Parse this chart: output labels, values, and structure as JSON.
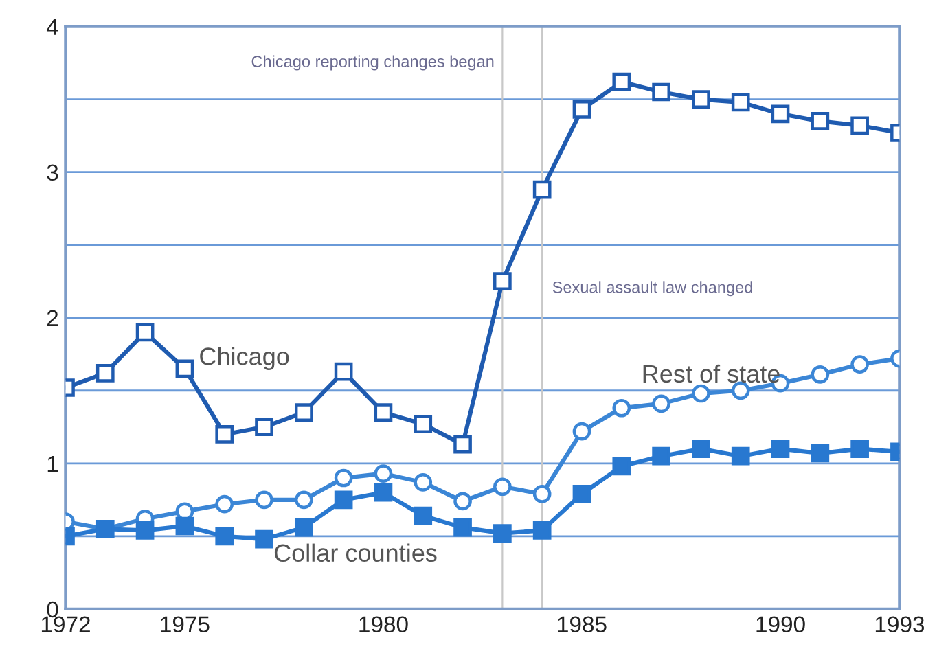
{
  "chart_data": {
    "type": "line",
    "x": [
      1972,
      1973,
      1974,
      1975,
      1976,
      1977,
      1978,
      1979,
      1980,
      1981,
      1982,
      1983,
      1984,
      1985,
      1986,
      1987,
      1988,
      1989,
      1990,
      1991,
      1992,
      1993
    ],
    "series": [
      {
        "name": "Chicago",
        "color": "#1f5bb0",
        "marker": "square",
        "values": [
          1.52,
          1.62,
          1.9,
          1.65,
          1.2,
          1.25,
          1.35,
          1.63,
          1.35,
          1.27,
          1.13,
          2.25,
          2.88,
          3.43,
          3.62,
          3.55,
          3.5,
          3.48,
          3.4,
          3.35,
          3.32,
          3.27
        ]
      },
      {
        "name": "Rest of state",
        "color": "#3b86d6",
        "marker": "circle",
        "values": [
          0.6,
          0.55,
          0.62,
          0.67,
          0.72,
          0.75,
          0.75,
          0.9,
          0.93,
          0.87,
          0.74,
          0.84,
          0.79,
          1.22,
          1.38,
          1.41,
          1.48,
          1.5,
          1.55,
          1.61,
          1.68,
          1.72
        ]
      },
      {
        "name": "Collar counties",
        "color": "#2878d0",
        "marker": "square",
        "values": [
          0.5,
          0.55,
          0.54,
          0.57,
          0.5,
          0.48,
          0.56,
          0.75,
          0.8,
          0.64,
          0.56,
          0.52,
          0.54,
          0.79,
          0.98,
          1.05,
          1.1,
          1.05,
          1.1,
          1.07,
          1.1,
          1.08
        ]
      }
    ],
    "xlim": [
      1972,
      1993
    ],
    "xticks": [
      1972,
      1975,
      1980,
      1985,
      1990,
      1993
    ],
    "ylim": [
      0,
      4
    ],
    "yticks": [
      0,
      {
        "value": 0.5,
        "label": null
      },
      1,
      {
        "value": 1.5,
        "label": null
      },
      2,
      {
        "value": 2.5,
        "label": null
      },
      3,
      {
        "value": 3.5,
        "label": null
      },
      4
    ],
    "grid": "y",
    "legend": false,
    "line_style": "solid",
    "ref_lines": [
      {
        "axis": "x",
        "value": 1983,
        "label": "Chicago reporting changes began",
        "color": "#c8c8c8"
      },
      {
        "axis": "x",
        "value": 1984,
        "label": "Sexual assault law changed",
        "color": "#c8c8c8"
      }
    ]
  }
}
